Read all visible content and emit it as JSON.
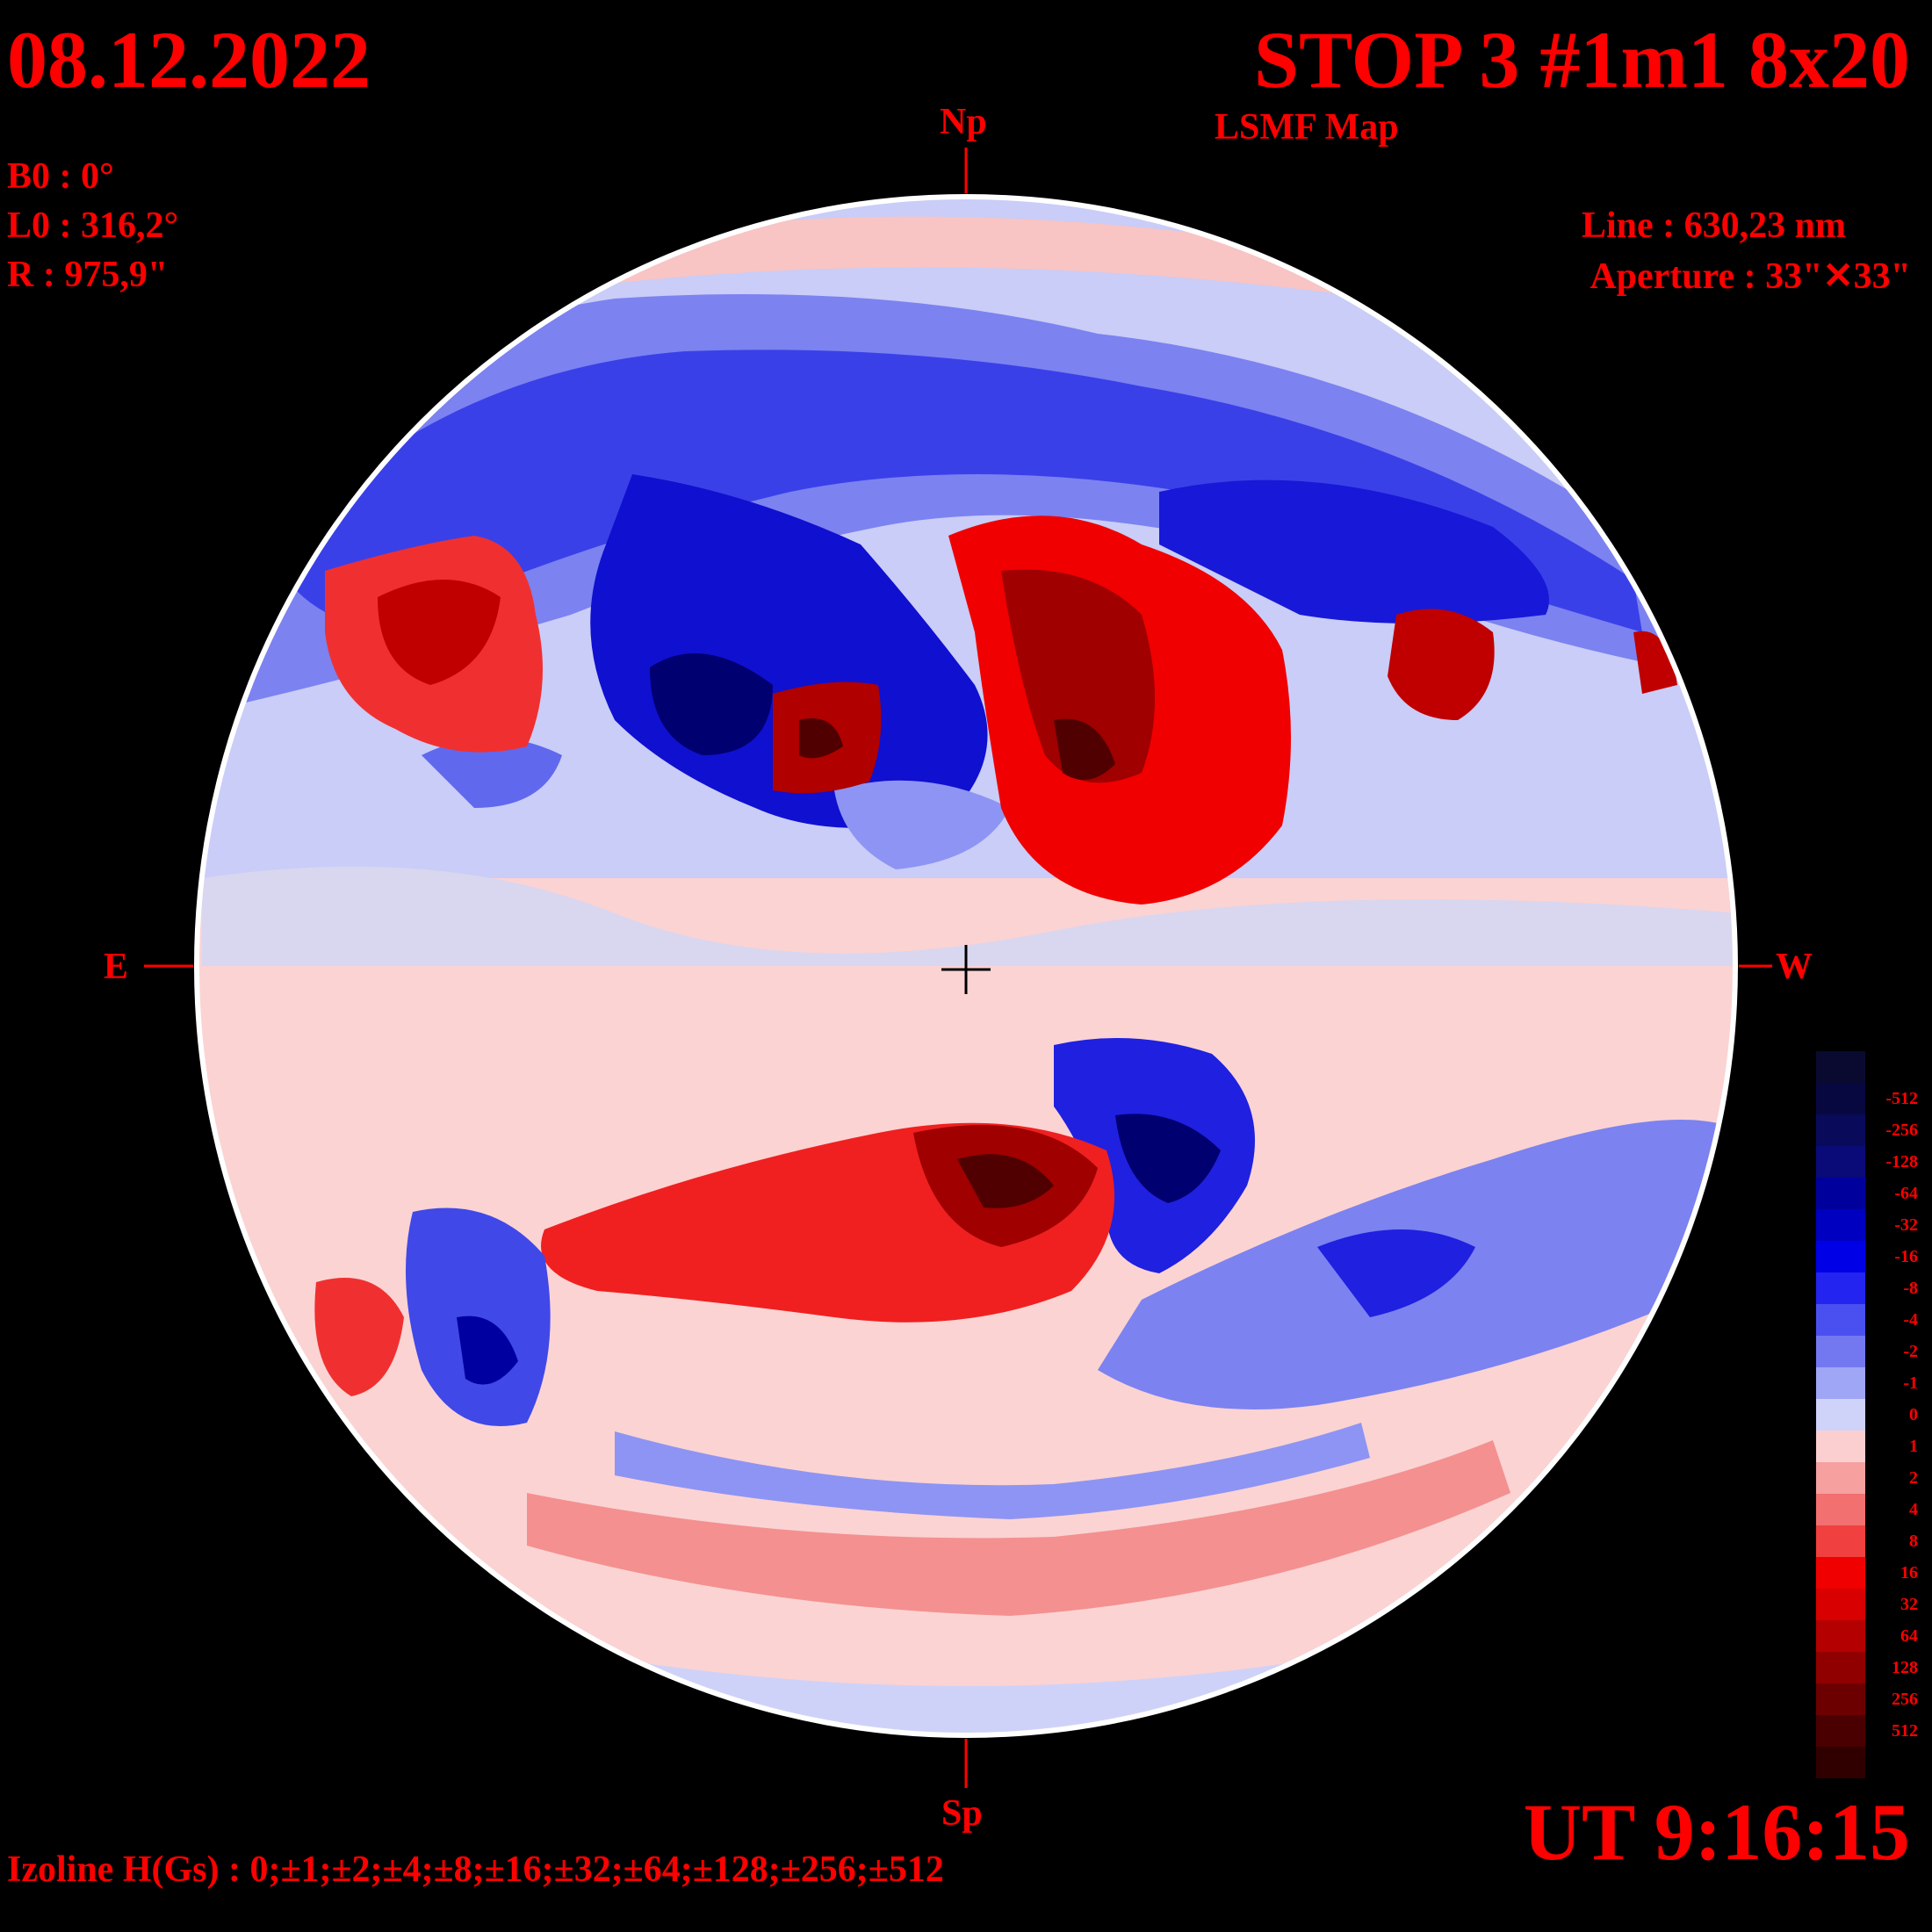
{
  "header": {
    "date": "08.12.2022",
    "title": "STOP 3 #1m1 8x20",
    "map_type": "LSMF  Map"
  },
  "params": {
    "b0": "B0 : 0°",
    "l0": "L0 : 316,2°",
    "radius": "R  : 975,9\""
  },
  "instrument": {
    "line": "Line :  630,23 nm",
    "aperture": "Aperture : 33\"✕33\""
  },
  "orientation": {
    "north": "Np",
    "south": "Sp",
    "east": "E",
    "west": "W"
  },
  "time": "UT 9:16:15",
  "izoline": "Izoline H(Gs) : 0;±1;±2;±4;±8;±16;±32;±64;±128;±256;±512",
  "colors": {
    "background": "#000000",
    "text": "#ff0000",
    "negative_base": "#d0d4f8",
    "positive_base": "#fbd6d6"
  },
  "legend": {
    "levels": [
      {
        "label": "",
        "color": "#0a0a30"
      },
      {
        "label": "-512",
        "color": "#080840"
      },
      {
        "label": "-256",
        "color": "#0a0a5a"
      },
      {
        "label": "-128",
        "color": "#0a0a78"
      },
      {
        "label": "-64",
        "color": "#00009c"
      },
      {
        "label": "-32",
        "color": "#0000c0"
      },
      {
        "label": "-16",
        "color": "#0000e6"
      },
      {
        "label": "-8",
        "color": "#2424f0"
      },
      {
        "label": "-4",
        "color": "#4a50f0"
      },
      {
        "label": "-2",
        "color": "#7478f0"
      },
      {
        "label": "-1",
        "color": "#a0a6f6"
      },
      {
        "label": "0",
        "color": "#cfd2f9"
      },
      {
        "label": "1",
        "color": "#fbcfcf"
      },
      {
        "label": "2",
        "color": "#f6a0a0"
      },
      {
        "label": "4",
        "color": "#f27070"
      },
      {
        "label": "8",
        "color": "#f04040"
      },
      {
        "label": "16",
        "color": "#f00000"
      },
      {
        "label": "32",
        "color": "#d80000"
      },
      {
        "label": "64",
        "color": "#b40000"
      },
      {
        "label": "128",
        "color": "#900000"
      },
      {
        "label": "256",
        "color": "#6c0000"
      },
      {
        "label": "512",
        "color": "#4a0000"
      },
      {
        "label": "",
        "color": "#300000"
      }
    ]
  }
}
